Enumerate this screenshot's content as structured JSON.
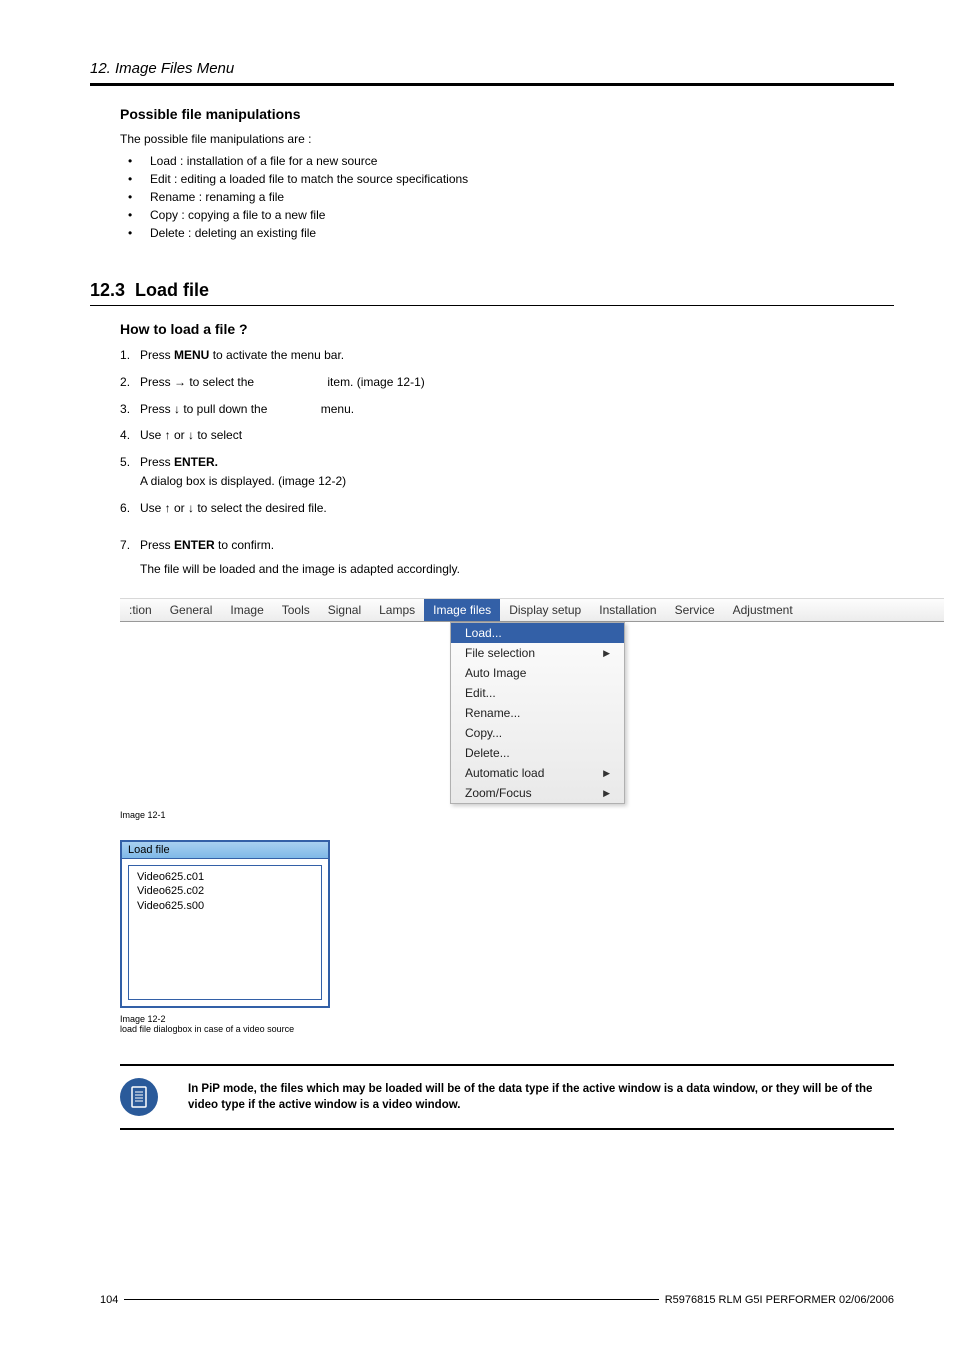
{
  "header": {
    "title": "12. Image Files Menu"
  },
  "sub1": {
    "title": "Possible file manipulations",
    "intro": "The possible file manipulations are :",
    "items": [
      "Load : installation of a file for a new source",
      "Edit : editing a loaded file to match the source specifications",
      "Rename : renaming a file",
      "Copy : copying a file to a new file",
      "Delete : deleting an existing file"
    ]
  },
  "sec": {
    "num": "12.3",
    "title": "Load file",
    "howto": "How to load a file ?",
    "steps": {
      "s1a": "Press ",
      "s1b": "MENU",
      "s1c": " to activate the menu bar.",
      "s2a": "Press → to select the ",
      "s2b": "item. (image 12-1)",
      "s3a": "Press ↓ to pull down the ",
      "s3b": "menu.",
      "s4": "Use ↑ or ↓ to select",
      "s5a": "Press ",
      "s5b": "ENTER.",
      "s5c": "A dialog box is displayed. (image 12-2)",
      "s6": "Use ↑ or ↓ to select the desired file.",
      "s7a": "Press ",
      "s7b": "ENTER",
      "s7c": " to confirm.",
      "after": "The file will be loaded and the image is adapted accordingly."
    }
  },
  "menubar": {
    "items": [
      ":tion",
      "General",
      "Image",
      "Tools",
      "Signal",
      "Lamps",
      "Image files",
      "Display setup",
      "Installation",
      "Service",
      "Adjustment"
    ],
    "active_index": 6
  },
  "dropdown": {
    "items": [
      {
        "label": "Load...",
        "highlighted": true,
        "arrow": false
      },
      {
        "label": "File selection",
        "highlighted": false,
        "arrow": true
      },
      {
        "label": "Auto Image",
        "highlighted": false,
        "arrow": false
      },
      {
        "label": "Edit...",
        "highlighted": false,
        "arrow": false
      },
      {
        "label": "Rename...",
        "highlighted": false,
        "arrow": false
      },
      {
        "label": "Copy...",
        "highlighted": false,
        "arrow": false
      },
      {
        "label": "Delete...",
        "highlighted": false,
        "arrow": false
      },
      {
        "label": "Automatic load",
        "highlighted": false,
        "arrow": true
      },
      {
        "label": "Zoom/Focus",
        "highlighted": false,
        "arrow": true
      }
    ]
  },
  "caption1": "Image 12-1",
  "dialog": {
    "title": "Load file",
    "files": [
      "Video625.c01",
      "Video625.c02",
      "Video625.s00"
    ]
  },
  "caption2a": "Image 12-2",
  "caption2b": "load file dialogbox in case of a video source",
  "note": "In PiP mode, the files which may be loaded will be of the data type if the active window is a data window, or they will be of the video type if the active window is a video window.",
  "footer": {
    "page": "104",
    "doc": "R5976815 RLM G5I PERFORMER 02/06/2006"
  }
}
